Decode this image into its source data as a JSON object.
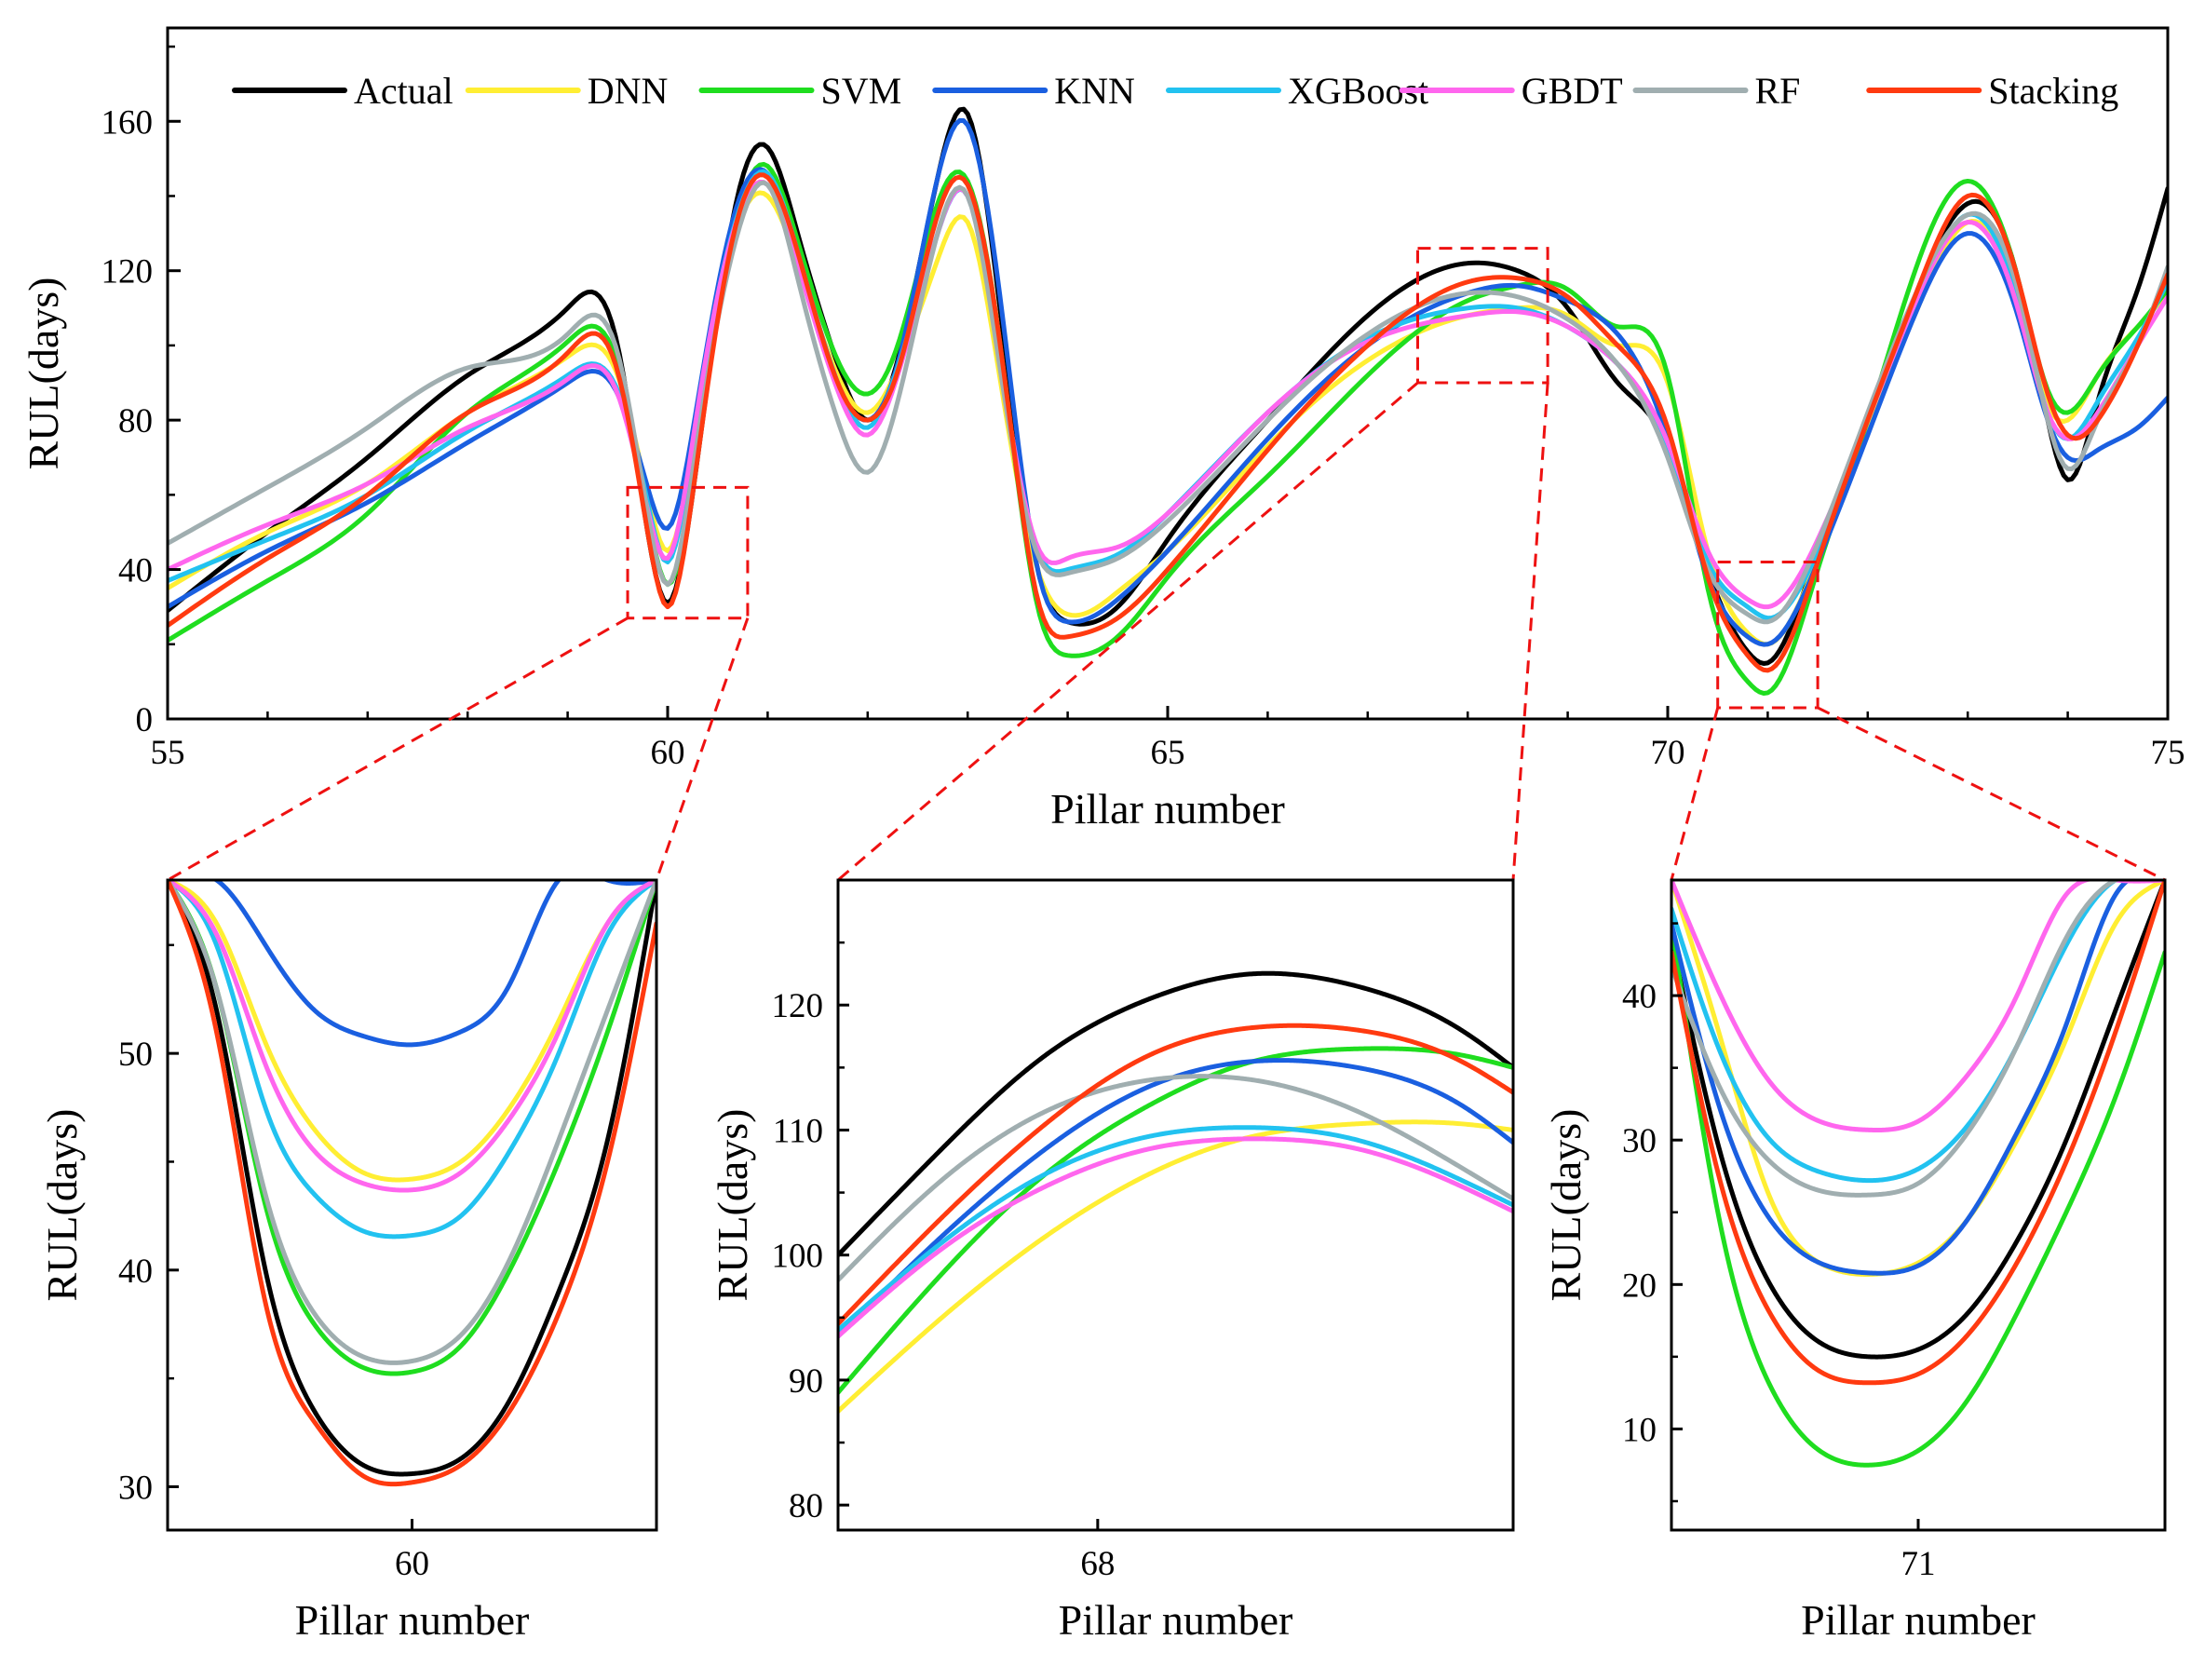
{
  "colors": {
    "Actual": "#000000",
    "DNN": "#ffee33",
    "SVM": "#1fdd1f",
    "KNN": "#1a5fe0",
    "XGBoost": "#22c2f0",
    "GBDT": "#ff66ee",
    "RF": "#a0aeb0",
    "Stacking": "#ff3a10",
    "zoom_box": "#ee1111"
  },
  "chart_data": [
    {
      "id": "main",
      "type": "line",
      "xlabel": "Pillar number",
      "ylabel": "RUL(days)",
      "xlim": [
        55,
        75
      ],
      "ylim": [
        0,
        185
      ],
      "xticks": [
        55,
        60,
        65,
        70,
        75
      ],
      "yticks": [
        0,
        40,
        80,
        120,
        160
      ],
      "legend": {
        "position": "top",
        "entries": [
          "Actual",
          "DNN",
          "SVM",
          "KNN",
          "XGBoost",
          "GBDT",
          "RF",
          "Stacking"
        ]
      },
      "x": [
        55,
        56,
        57,
        58,
        59,
        59.5,
        59.8,
        60,
        60.3,
        60.7,
        61,
        61.3,
        61.7,
        62,
        62.3,
        62.7,
        63,
        63.3,
        63.7,
        64,
        64.5,
        65,
        66,
        67,
        68,
        68.5,
        69,
        69.5,
        70,
        70.4,
        70.8,
        71,
        71.5,
        72,
        72.5,
        73,
        73.5,
        73.8,
        74,
        74.3,
        74.7,
        75
      ],
      "series": [
        {
          "name": "Actual",
          "values": [
            29,
            50,
            70,
            92,
            110,
            100,
            50,
            31,
            70,
            140,
            153,
            130,
            95,
            80,
            96,
            145,
            162,
            115,
            40,
            26,
            30,
            48,
            80,
            108,
            122,
            120,
            110,
            90,
            73,
            40,
            18,
            15,
            45,
            80,
            115,
            138,
            118,
            80,
            64,
            85,
            115,
            142
          ]
        },
        {
          "name": "DNN",
          "values": [
            35,
            50,
            63,
            82,
            97,
            92,
            60,
            45,
            80,
            132,
            140,
            122,
            92,
            82,
            94,
            123,
            133,
            95,
            40,
            28,
            34,
            45,
            73,
            96,
            108,
            110,
            108,
            100,
            90,
            45,
            23,
            20,
            43,
            78,
            110,
            133,
            112,
            84,
            80,
            92,
            105,
            114
          ]
        },
        {
          "name": "SVM",
          "values": [
            21,
            37,
            55,
            82,
            101,
            95,
            55,
            36,
            72,
            135,
            148,
            128,
            96,
            87,
            100,
            138,
            144,
            105,
            30,
            17,
            22,
            38,
            65,
            92,
            112,
            116,
            115,
            105,
            92,
            35,
            10,
            7,
            40,
            80,
            122,
            144,
            118,
            88,
            82,
            92,
            105,
            115
          ]
        },
        {
          "name": "KNN",
          "values": [
            30,
            45,
            58,
            74,
            90,
            87,
            62,
            51,
            85,
            138,
            146,
            125,
            90,
            80,
            95,
            145,
            159,
            118,
            40,
            26,
            32,
            45,
            75,
            100,
            114,
            116,
            112,
            103,
            75,
            38,
            22,
            20,
            42,
            76,
            110,
            130,
            108,
            80,
            70,
            72,
            78,
            86
          ]
        },
        {
          "name": "XGBoost",
          "values": [
            37,
            48,
            60,
            77,
            92,
            88,
            58,
            42,
            82,
            135,
            146,
            125,
            90,
            78,
            94,
            130,
            140,
            100,
            45,
            40,
            44,
            55,
            82,
            102,
            110,
            110,
            105,
            95,
            73,
            42,
            30,
            27,
            45,
            80,
            113,
            135,
            112,
            82,
            75,
            85,
            102,
            117
          ]
        },
        {
          "name": "GBDT",
          "values": [
            40,
            52,
            63,
            78,
            91,
            87,
            56,
            43,
            83,
            134,
            143,
            122,
            88,
            76,
            92,
            130,
            140,
            100,
            46,
            43,
            46,
            55,
            82,
            101,
            108,
            109,
            105,
            95,
            74,
            45,
            32,
            30,
            48,
            80,
            113,
            133,
            110,
            82,
            75,
            82,
            100,
            113
          ]
        },
        {
          "name": "RF",
          "values": [
            47,
            62,
            78,
            94,
            103,
            98,
            55,
            36,
            75,
            130,
            143,
            118,
            80,
            66,
            85,
            130,
            140,
            98,
            44,
            39,
            43,
            53,
            80,
            103,
            114,
            113,
            107,
            95,
            70,
            40,
            28,
            26,
            47,
            82,
            115,
            135,
            115,
            80,
            67,
            80,
            100,
            121
          ]
        },
        {
          "name": "Stacking",
          "values": [
            25,
            43,
            60,
            82,
            98,
            93,
            50,
            30,
            70,
            134,
            145,
            125,
            90,
            80,
            93,
            135,
            143,
            105,
            32,
            22,
            27,
            40,
            72,
            100,
            117,
            118,
            113,
            100,
            78,
            38,
            17,
            13,
            42,
            80,
            115,
            140,
            118,
            87,
            76,
            80,
            100,
            119
          ]
        }
      ],
      "zoom_regions": [
        {
          "xlim": [
            59.6,
            60.8
          ],
          "ylim": [
            27,
            62
          ]
        },
        {
          "xlim": [
            67.5,
            68.8
          ],
          "ylim": [
            90,
            126
          ]
        },
        {
          "xlim": [
            70.5,
            71.5
          ],
          "ylim": [
            3,
            42
          ]
        }
      ]
    },
    {
      "id": "zoom60",
      "type": "line",
      "xlabel": "Pillar number",
      "ylabel": "RUL(days)",
      "xlim": [
        59.5,
        60.5
      ],
      "ylim": [
        28,
        58
      ],
      "xticks": [
        60
      ],
      "yticks": [
        30,
        40,
        50
      ],
      "x": [
        59.5,
        59.6,
        59.7,
        59.8,
        59.9,
        60.0,
        60.1,
        60.2,
        60.3,
        60.4,
        60.5
      ],
      "series": [
        {
          "name": "Actual",
          "values": [
            58,
            52,
            40,
            33.5,
            31,
            30.6,
            31.3,
            34,
            39,
            46,
            58
          ]
        },
        {
          "name": "DNN",
          "values": [
            58,
            56,
            50.5,
            46.5,
            44.5,
            44.2,
            45,
            47.5,
            51.5,
            56,
            58
          ]
        },
        {
          "name": "SVM",
          "values": [
            58,
            53,
            43,
            37.5,
            35.5,
            35.3,
            36.5,
            40,
            45,
            51,
            58
          ]
        },
        {
          "name": "KNN",
          "values": [
            58,
            58,
            55,
            52,
            50.8,
            50.4,
            51,
            53.2,
            58,
            58,
            58
          ]
        },
        {
          "name": "XGBoost",
          "values": [
            58,
            55,
            47.5,
            43.5,
            41.8,
            41.6,
            42.5,
            45.5,
            50,
            55.5,
            58
          ]
        },
        {
          "name": "GBDT",
          "values": [
            58,
            55.5,
            49.5,
            45.5,
            44,
            43.7,
            44.5,
            47,
            51,
            56,
            58
          ]
        },
        {
          "name": "RF",
          "values": [
            58,
            53,
            43.5,
            38,
            36,
            35.8,
            37,
            40.5,
            46,
            52,
            58
          ]
        },
        {
          "name": "Stacking",
          "values": [
            58,
            51,
            38.5,
            33,
            30.5,
            30.2,
            31,
            33.5,
            38,
            45,
            56
          ]
        }
      ]
    },
    {
      "id": "zoom68",
      "type": "line",
      "xlabel": "Pillar number",
      "ylabel": "RUL(days)",
      "xlim": [
        67.5,
        68.8
      ],
      "ylim": [
        78,
        130
      ],
      "xticks": [
        68
      ],
      "yticks": [
        80,
        90,
        100,
        110,
        120
      ],
      "x": [
        67.5,
        67.7,
        67.9,
        68.1,
        68.3,
        68.5,
        68.7,
        68.8
      ],
      "series": [
        {
          "name": "Actual",
          "values": [
            100,
            108.5,
            116,
            120.5,
            122.5,
            121.5,
            118,
            115
          ]
        },
        {
          "name": "DNN",
          "values": [
            87.5,
            95,
            101.5,
            106.5,
            109.5,
            110.5,
            110.5,
            110
          ]
        },
        {
          "name": "SVM",
          "values": [
            89,
            98.5,
            106.5,
            112,
            115.5,
            116.5,
            116,
            115
          ]
        },
        {
          "name": "KNN",
          "values": [
            93.5,
            101.5,
            108.5,
            113.5,
            115.5,
            115,
            112,
            109
          ]
        },
        {
          "name": "XGBoost",
          "values": [
            94,
            101,
            106.5,
            109.5,
            110.2,
            109.2,
            106,
            104
          ]
        },
        {
          "name": "GBDT",
          "values": [
            93.5,
            100.5,
            105.5,
            108.5,
            109.3,
            108.5,
            105.5,
            103.5
          ]
        },
        {
          "name": "RF",
          "values": [
            98,
            106,
            111.5,
            114,
            114,
            111.5,
            107,
            104.5
          ]
        },
        {
          "name": "Stacking",
          "values": [
            94.5,
            103,
            110.5,
            116,
            118.2,
            118,
            115.5,
            113
          ]
        }
      ]
    },
    {
      "id": "zoom71",
      "type": "line",
      "xlabel": "Pillar number",
      "ylabel": "RUL(days)",
      "xlim": [
        70.5,
        71.5
      ],
      "ylim": [
        3,
        48
      ],
      "xticks": [
        71
      ],
      "yticks": [
        10,
        20,
        30,
        40
      ],
      "x": [
        70.5,
        70.6,
        70.7,
        70.8,
        70.9,
        71.0,
        71.1,
        71.2,
        71.3,
        71.4,
        71.5
      ],
      "series": [
        {
          "name": "Actual",
          "values": [
            44,
            29,
            20,
            16,
            15,
            15.5,
            18,
            23,
            30,
            39,
            48
          ]
        },
        {
          "name": "DNN",
          "values": [
            48,
            37,
            26,
            21.5,
            20.7,
            21.5,
            24.5,
            30,
            37,
            45,
            48
          ]
        },
        {
          "name": "SVM",
          "values": [
            45,
            24,
            13,
            8.5,
            7.5,
            8.5,
            12,
            18,
            25,
            33,
            43
          ]
        },
        {
          "name": "KNN",
          "values": [
            45,
            32,
            24.5,
            21.5,
            20.8,
            21.3,
            24.5,
            30.5,
            38,
            47,
            48
          ]
        },
        {
          "name": "XGBoost",
          "values": [
            46,
            36,
            30,
            27.8,
            27.2,
            28,
            31,
            36.5,
            43.5,
            48,
            48
          ]
        },
        {
          "name": "GBDT",
          "values": [
            48,
            40,
            34,
            31.3,
            30.7,
            31.3,
            34.5,
            40,
            47,
            48,
            48
          ]
        },
        {
          "name": "RF",
          "values": [
            42,
            33.5,
            28.5,
            26.5,
            26.2,
            27,
            30.5,
            36.5,
            44,
            48,
            48
          ]
        },
        {
          "name": "Stacking",
          "values": [
            43,
            27,
            18,
            14,
            13.2,
            13.8,
            16.5,
            21.5,
            28.5,
            37.5,
            48
          ]
        }
      ]
    }
  ]
}
